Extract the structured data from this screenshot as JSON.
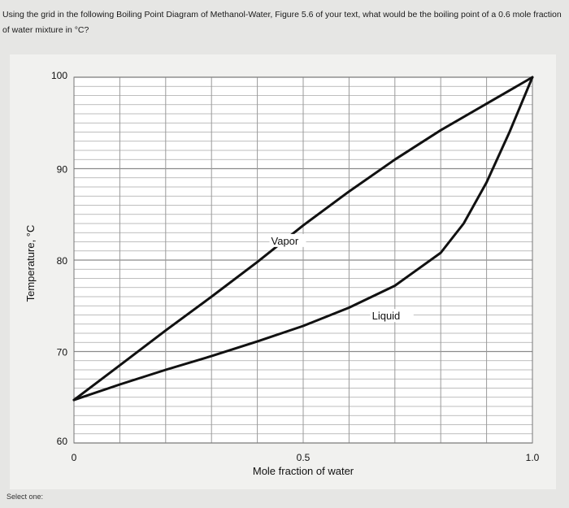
{
  "question": {
    "text": "Using the grid in the following Boiling Point Diagram of Methanol-Water, Figure 5.6 of your text, what would be the boiling point of a 0.6 mole fraction of water mixture in °C?"
  },
  "footer": {
    "select_label": "Select one:"
  },
  "chart_data": {
    "type": "line",
    "xlabel": "Mole fraction of water",
    "ylabel": "Temperature, °C",
    "xlim": [
      0,
      1.0
    ],
    "ylim": [
      60,
      100
    ],
    "x_ticks": [
      "0",
      "0.5",
      "1.0"
    ],
    "y_ticks": [
      "60",
      "70",
      "80",
      "90",
      "100"
    ],
    "grid": true,
    "series": [
      {
        "name": "Vapor",
        "color": "#111111",
        "x": [
          0.0,
          0.1,
          0.2,
          0.3,
          0.4,
          0.5,
          0.6,
          0.7,
          0.8,
          0.9,
          1.0
        ],
        "y": [
          64.7,
          68.5,
          72.3,
          76.0,
          79.8,
          83.8,
          87.5,
          91.0,
          94.2,
          97.1,
          100.0
        ]
      },
      {
        "name": "Liquid",
        "color": "#111111",
        "x": [
          0.0,
          0.1,
          0.2,
          0.3,
          0.4,
          0.5,
          0.6,
          0.7,
          0.8,
          0.85,
          0.9,
          0.95,
          1.0
        ],
        "y": [
          64.7,
          66.4,
          68.0,
          69.5,
          71.1,
          72.8,
          74.8,
          77.2,
          80.8,
          84.0,
          88.5,
          94.0,
          100.0
        ]
      }
    ],
    "annotations": [
      {
        "text": "Vapor",
        "x": 0.43,
        "y": 81.7
      },
      {
        "text": "Liquid",
        "x": 0.65,
        "y": 73.5
      }
    ]
  }
}
